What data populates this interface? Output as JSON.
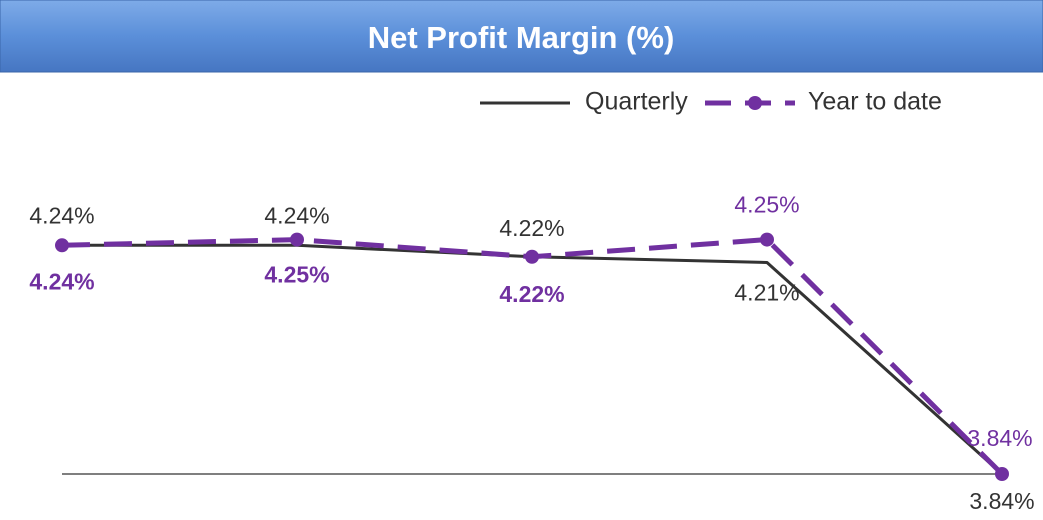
{
  "chart_data": {
    "type": "line",
    "title": "Net Profit Margin (%)",
    "categories": [
      null,
      null,
      null,
      null,
      null
    ],
    "series": [
      {
        "name": "Quarterly",
        "color": "#333333",
        "values": [
          4.24,
          4.24,
          4.22,
          4.21,
          3.84
        ],
        "value_labels": [
          "4.24%",
          "4.24%",
          "4.22%",
          "4.21%",
          "3.84%"
        ]
      },
      {
        "name": "Year to date",
        "color": "#7030a0",
        "values": [
          4.24,
          4.25,
          4.22,
          4.25,
          3.84
        ],
        "value_labels": [
          "4.24%",
          "4.25%",
          "4.22%",
          "4.25%",
          "3.84%"
        ]
      }
    ],
    "ylim": [
      3.84,
      4.3
    ],
    "grid": false,
    "legend": "top-right"
  }
}
